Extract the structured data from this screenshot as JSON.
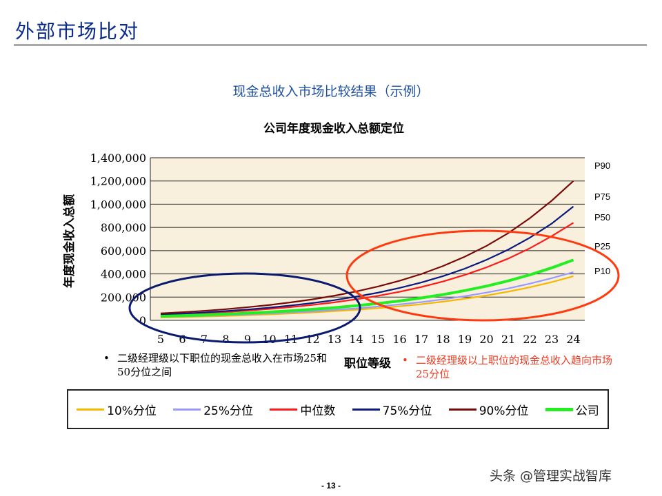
{
  "header": {
    "title": "外部市场比对",
    "subtitle": "现金总收入市场比较结果（示例）"
  },
  "chart_data": {
    "type": "line",
    "title": "公司年度现金收入总额定位",
    "xlabel": "职位等级",
    "ylabel": "年度现金收入总额",
    "categories": [
      "5",
      "6",
      "7",
      "8",
      "9",
      "10",
      "11",
      "12",
      "13",
      "14",
      "15",
      "16",
      "17",
      "18",
      "19",
      "20",
      "21",
      "22",
      "23",
      "24"
    ],
    "ylim": [
      0,
      1400000
    ],
    "yticks": [
      "0",
      "200,000",
      "400,000",
      "600,000",
      "800,000",
      "1,000,000",
      "1,200,000",
      "1,400,000"
    ],
    "grid": true,
    "legend_placement": "bottom",
    "series": [
      {
        "name": "10%分位",
        "color": "#f5b800",
        "values": [
          25000,
          29000,
          33000,
          38000,
          44000,
          51000,
          59000,
          68000,
          79000,
          91000,
          105000,
          121000,
          139000,
          161000,
          186000,
          214000,
          247000,
          285000,
          329000,
          380000
        ]
      },
      {
        "name": "25%分位",
        "color": "#9999ff",
        "values": [
          30000,
          34000,
          39000,
          45000,
          51000,
          59000,
          68000,
          78000,
          90000,
          103000,
          119000,
          137000,
          157000,
          181000,
          208000,
          239000,
          275000,
          316000,
          363000,
          415000
        ]
      },
      {
        "name": "中位数",
        "color": "#ff1a1a",
        "values": [
          45000,
          53000,
          61000,
          72000,
          84000,
          98000,
          114000,
          133000,
          155000,
          181000,
          211000,
          246000,
          287000,
          335000,
          391000,
          456000,
          532000,
          621000,
          725000,
          840000
        ]
      },
      {
        "name": "75%分位",
        "color": "#0a1a80",
        "values": [
          50000,
          58000,
          68000,
          80000,
          93000,
          109000,
          128000,
          149000,
          174000,
          204000,
          238000,
          279000,
          326000,
          381000,
          445000,
          521000,
          609000,
          712000,
          833000,
          980000
        ]
      },
      {
        "name": "90%分位",
        "color": "#7a0a0a",
        "values": [
          60000,
          70000,
          82000,
          96000,
          113000,
          132000,
          155000,
          181000,
          212000,
          249000,
          291000,
          341000,
          399000,
          468000,
          548000,
          641000,
          751000,
          880000,
          1030000,
          1200000
        ]
      },
      {
        "name": "公司",
        "color": "#22ee22",
        "values": [
          35000,
          40000,
          47000,
          54000,
          62000,
          71000,
          82000,
          95000,
          109000,
          126000,
          145000,
          167000,
          193000,
          222000,
          256000,
          295000,
          340000,
          392000,
          452000,
          520000
        ]
      }
    ],
    "annotations": [
      "P90",
      "P75",
      "P50",
      "P25",
      "P10"
    ]
  },
  "notes": {
    "left": "二级经理级以下职位的现金总收入在市场25和50分位之间",
    "right": "二级经理级以上职位的现金总收入趋向市场25分位"
  },
  "footer": {
    "page": "- 13 -",
    "watermark": "头条 @管理实战智库"
  }
}
